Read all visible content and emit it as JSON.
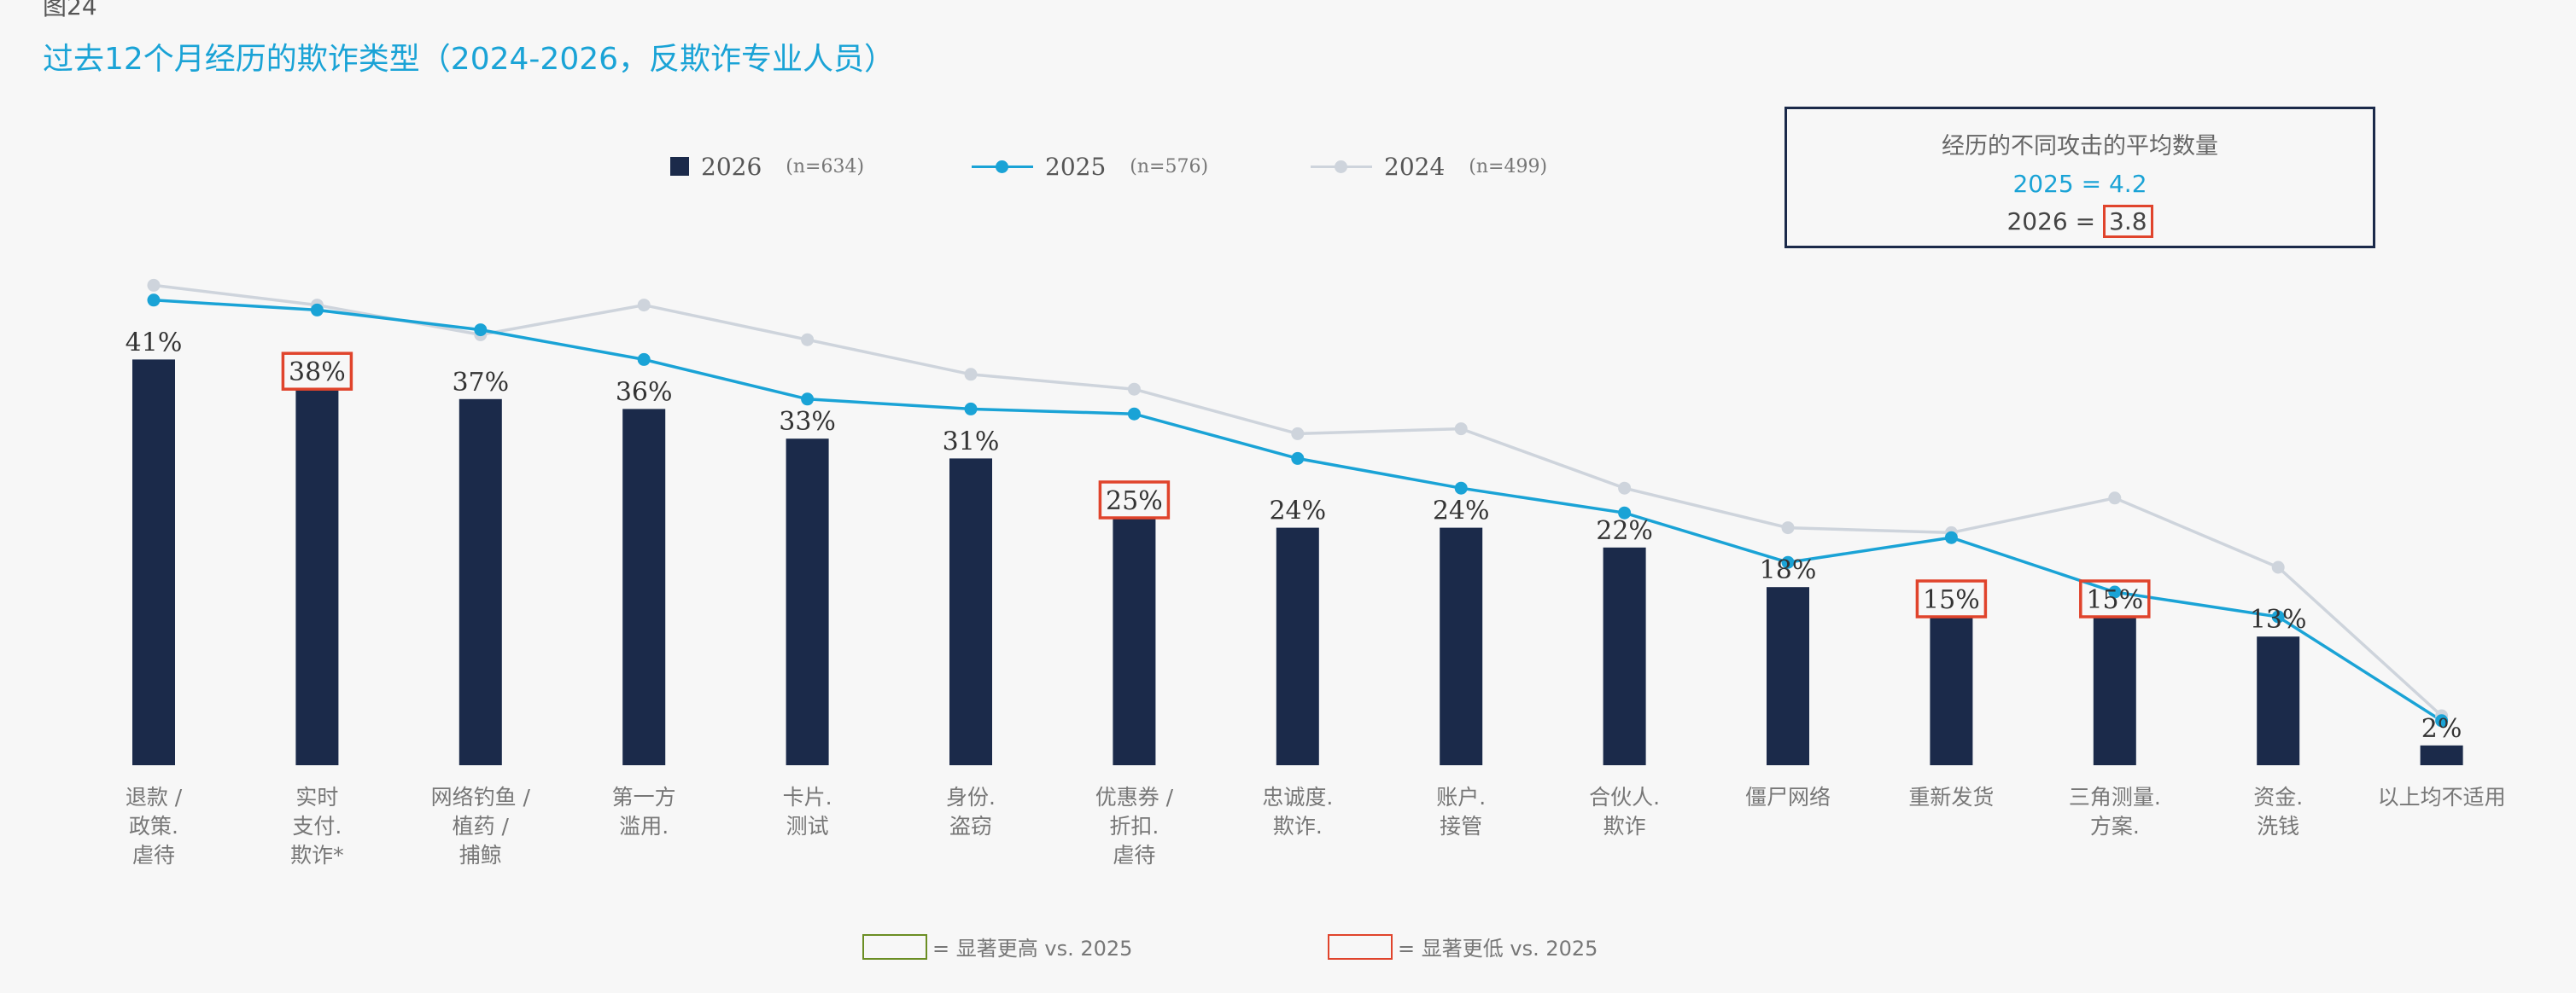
{
  "figure_label": "图24",
  "title": "过去12个月经历的欺诈类型（2024-2026，反欺诈专业人员）",
  "legend": [
    {
      "name": "2026",
      "n": "(n=634)",
      "kind": "bar",
      "color": "#1b2a4a"
    },
    {
      "name": "2025",
      "n": "(n=576)",
      "kind": "line",
      "color": "#1aa3d6"
    },
    {
      "name": "2024",
      "n": "(n=499)",
      "kind": "line",
      "color": "#ced4dc"
    }
  ],
  "avg_box": {
    "title": "经历的不同攻击的平均数量",
    "line_2025": "2025 = 4.2",
    "prefix_2026": "2026 = ",
    "value_2026": "3.8"
  },
  "significance_key": {
    "higher": "= 显著更高 vs. 2025",
    "higher_color": "#6b8e23",
    "lower": "= 显著更低 vs. 2025",
    "lower_color": "#e0442c"
  },
  "chart_data": {
    "type": "bar",
    "categories": [
      [
        "退款 /",
        "政策.",
        "虐待"
      ],
      [
        "实时",
        "支付.",
        "欺诈*"
      ],
      [
        "网络钓鱼 /",
        "植药 /",
        "捕鲸"
      ],
      [
        "第一方",
        "滥用."
      ],
      [
        "卡片.",
        "测试"
      ],
      [
        "身份.",
        "盗窃"
      ],
      [
        "优惠券 /",
        "折扣.",
        "虐待"
      ],
      [
        "忠诚度.",
        "欺诈."
      ],
      [
        "账户.",
        "接管"
      ],
      [
        "合伙人.",
        "欺诈"
      ],
      [
        "僵尸网络"
      ],
      [
        "重新发货"
      ],
      [
        "三角测量.",
        "方案."
      ],
      [
        "资金.",
        "洗钱"
      ],
      [
        "以上均不适用"
      ]
    ],
    "series": [
      {
        "name": "2026",
        "kind": "bar",
        "color": "#1b2a4a",
        "values": [
          41,
          38,
          37,
          36,
          33,
          31,
          25,
          24,
          24,
          22,
          18,
          15,
          15,
          13,
          2
        ],
        "labels": [
          "41%",
          "38%",
          "37%",
          "36%",
          "33%",
          "31%",
          "25%",
          "24%",
          "24%",
          "22%",
          "18%",
          "15%",
          "15%",
          "13%",
          "2%"
        ]
      },
      {
        "name": "2025",
        "kind": "line",
        "color": "#1aa3d6",
        "values": [
          47,
          46,
          44,
          41,
          37,
          36,
          35.5,
          31,
          28,
          25.5,
          20.5,
          23,
          17.5,
          15,
          4.5
        ]
      },
      {
        "name": "2024",
        "kind": "line",
        "color": "#ced4dc",
        "values": [
          48.5,
          46.5,
          43.5,
          46.5,
          43,
          39.5,
          38,
          33.5,
          34,
          28,
          24,
          23.5,
          27,
          20,
          5
        ]
      }
    ],
    "significantly_lower_vs_2025": [
      "38%",
      "25%",
      "15%"
    ],
    "ylim": [
      0,
      55
    ],
    "grid": false
  }
}
